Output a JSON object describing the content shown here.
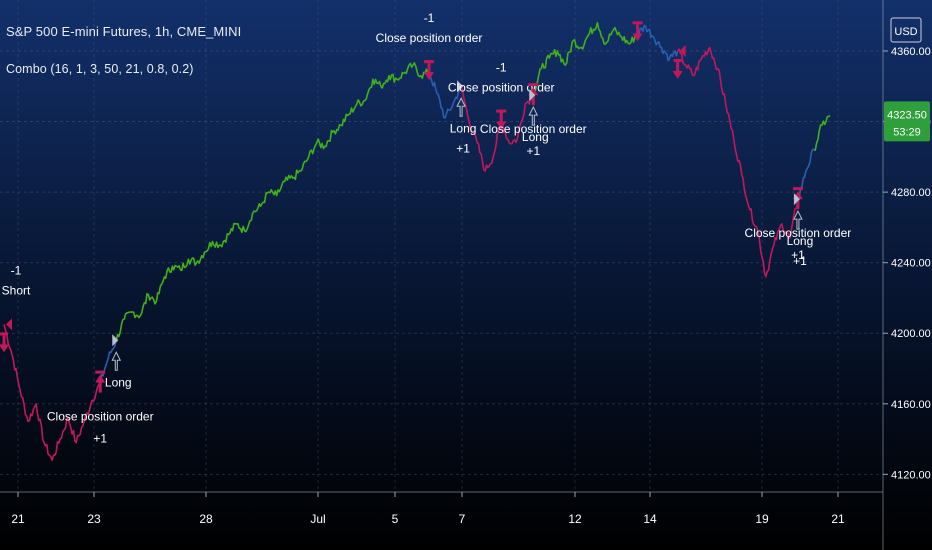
{
  "header": {
    "symbol_line": "S&P 500 E-mini Futures, 1h, CME_MINI",
    "study_line": "Combo (16, 1, 3, 50, 21, 0.8, 0.2)"
  },
  "price_axis": {
    "currency": "USD",
    "ticks": [
      "4360.00",
      "4320.00",
      "4280.00",
      "4240.00",
      "4200.00",
      "4160.00",
      "4120.00"
    ],
    "last_price": "4323.50",
    "countdown": "53:29"
  },
  "time_axis": {
    "ticks": [
      "21",
      "23",
      "28",
      "Jul",
      "5",
      "7",
      "12",
      "14",
      "19",
      "21"
    ]
  },
  "colors": {
    "bg_top": "#13306b",
    "bg_bottom": "#000000",
    "uptrend": "#3fb11b",
    "downtrend": "#c2185b",
    "neutral": "#2b5eb0",
    "marker": "#c2185b",
    "long_arrow": "#b8c0cc",
    "text": "#ffffff",
    "last_price_bg": "#2e9f3a"
  },
  "chart_data": {
    "type": "line",
    "title": "S&P 500 E-mini Futures, 1h, CME_MINI",
    "xlabel": "",
    "ylabel": "",
    "x_tick_labels": [
      "21",
      "23",
      "28",
      "Jul",
      "5",
      "7",
      "12",
      "14",
      "19",
      "21"
    ],
    "ylim": [
      4110,
      4385
    ],
    "grid": true,
    "series": [
      {
        "segments": [
          {
            "trend": "down",
            "points": [
              [
                0,
                4205
              ],
              [
                1,
                4188
              ],
              [
                2,
                4168
              ],
              [
                3,
                4150
              ],
              [
                4,
                4160
              ],
              [
                5,
                4138
              ],
              [
                6,
                4128
              ],
              [
                7,
                4140
              ],
              [
                8,
                4152
              ],
              [
                9,
                4138
              ],
              [
                10,
                4150
              ],
              [
                11,
                4162
              ],
              [
                12,
                4172
              ]
            ]
          },
          {
            "trend": "neutral",
            "points": [
              [
                12,
                4172
              ],
              [
                13,
                4186
              ],
              [
                14,
                4196
              ]
            ]
          },
          {
            "trend": "up",
            "points": [
              [
                14,
                4196
              ],
              [
                15,
                4208
              ],
              [
                16,
                4212
              ],
              [
                17,
                4210
              ],
              [
                18,
                4222
              ],
              [
                19,
                4218
              ],
              [
                20,
                4232
              ],
              [
                21,
                4238
              ],
              [
                22,
                4236
              ],
              [
                23,
                4242
              ],
              [
                24,
                4240
              ],
              [
                25,
                4246
              ],
              [
                26,
                4252
              ],
              [
                27,
                4250
              ],
              [
                28,
                4256
              ],
              [
                29,
                4262
              ],
              [
                30,
                4258
              ],
              [
                31,
                4268
              ],
              [
                32,
                4272
              ],
              [
                33,
                4280
              ],
              [
                34,
                4278
              ],
              [
                35,
                4286
              ],
              [
                36,
                4288
              ],
              [
                37,
                4292
              ],
              [
                38,
                4300
              ],
              [
                39,
                4308
              ],
              [
                40,
                4306
              ],
              [
                41,
                4314
              ],
              [
                42,
                4318
              ],
              [
                43,
                4324
              ],
              [
                44,
                4330
              ],
              [
                45,
                4332
              ],
              [
                46,
                4344
              ],
              [
                47,
                4340
              ],
              [
                48,
                4346
              ],
              [
                49,
                4344
              ],
              [
                50,
                4348
              ],
              [
                51,
                4352
              ],
              [
                52,
                4346
              ],
              [
                53,
                4348
              ]
            ]
          },
          {
            "trend": "neutral",
            "points": [
              [
                53,
                4348
              ],
              [
                54,
                4336
              ],
              [
                55,
                4322
              ],
              [
                56,
                4330
              ],
              [
                57,
                4340
              ]
            ]
          },
          {
            "trend": "down",
            "points": [
              [
                57,
                4340
              ],
              [
                58,
                4320
              ],
              [
                59,
                4308
              ],
              [
                60,
                4292
              ],
              [
                61,
                4300
              ],
              [
                62,
                4320
              ],
              [
                63,
                4308
              ],
              [
                64,
                4310
              ],
              [
                65,
                4330
              ],
              [
                66,
                4335
              ]
            ]
          },
          {
            "trend": "up",
            "points": [
              [
                66,
                4335
              ],
              [
                67,
                4350
              ],
              [
                68,
                4356
              ],
              [
                69,
                4360
              ],
              [
                70,
                4352
              ],
              [
                71,
                4366
              ],
              [
                72,
                4362
              ],
              [
                73,
                4370
              ],
              [
                74,
                4376
              ],
              [
                75,
                4364
              ],
              [
                76,
                4372
              ],
              [
                77,
                4368
              ],
              [
                78,
                4364
              ],
              [
                79,
                4370
              ]
            ]
          },
          {
            "trend": "neutral",
            "points": [
              [
                79,
                4370
              ],
              [
                80,
                4374
              ],
              [
                81,
                4368
              ],
              [
                82,
                4362
              ],
              [
                83,
                4356
              ],
              [
                84,
                4360
              ]
            ]
          },
          {
            "trend": "down",
            "points": [
              [
                84,
                4360
              ],
              [
                85,
                4352
              ],
              [
                86,
                4346
              ],
              [
                87,
                4356
              ],
              [
                88,
                4362
              ],
              [
                89,
                4350
              ],
              [
                90,
                4330
              ],
              [
                91,
                4310
              ],
              [
                92,
                4290
              ],
              [
                93,
                4270
              ],
              [
                94,
                4258
              ],
              [
                95,
                4232
              ],
              [
                96,
                4250
              ],
              [
                97,
                4262
              ],
              [
                98,
                4254
              ],
              [
                99,
                4276
              ]
            ]
          },
          {
            "trend": "neutral",
            "points": [
              [
                99,
                4276
              ],
              [
                100,
                4292
              ],
              [
                101,
                4304
              ]
            ]
          },
          {
            "trend": "up",
            "points": [
              [
                101,
                4304
              ],
              [
                102,
                4318
              ],
              [
                103,
                4323.5
              ]
            ]
          }
        ]
      }
    ],
    "annotations": [
      {
        "kind": "short_entry",
        "x": 0,
        "y": 4205,
        "qty": "-1",
        "label": "Short"
      },
      {
        "kind": "close_short",
        "x": 12,
        "y": 4172,
        "qty": "+1",
        "label": "Close position order"
      },
      {
        "kind": "long_entry",
        "x": 14,
        "y": 4196,
        "qty": "",
        "label": "Long"
      },
      {
        "kind": "close_long",
        "x": 53,
        "y": 4348,
        "qty": "-1",
        "label": "Close position order"
      },
      {
        "kind": "long_entry",
        "x": 57,
        "y": 4340,
        "qty": "+1",
        "label": "Long"
      },
      {
        "kind": "close_long",
        "x": 62,
        "y": 4320,
        "qty": "-1",
        "label": "Close position order"
      },
      {
        "kind": "close_short",
        "x": 66,
        "y": 4335,
        "qty": "+1",
        "label": "Close position order"
      },
      {
        "kind": "long_entry",
        "x": 66,
        "y": 4335,
        "qty": "",
        "label": "Long"
      },
      {
        "kind": "close_long",
        "x": 79,
        "y": 4370,
        "qty": "",
        "label": ""
      },
      {
        "kind": "short_entry",
        "x": 84,
        "y": 4360,
        "qty": "",
        "label": ""
      },
      {
        "kind": "close_short",
        "x": 99,
        "y": 4276,
        "qty": "+1",
        "label": "Close position order"
      },
      {
        "kind": "long_entry",
        "x": 99,
        "y": 4276,
        "qty": "+1",
        "label": "Long"
      }
    ]
  }
}
